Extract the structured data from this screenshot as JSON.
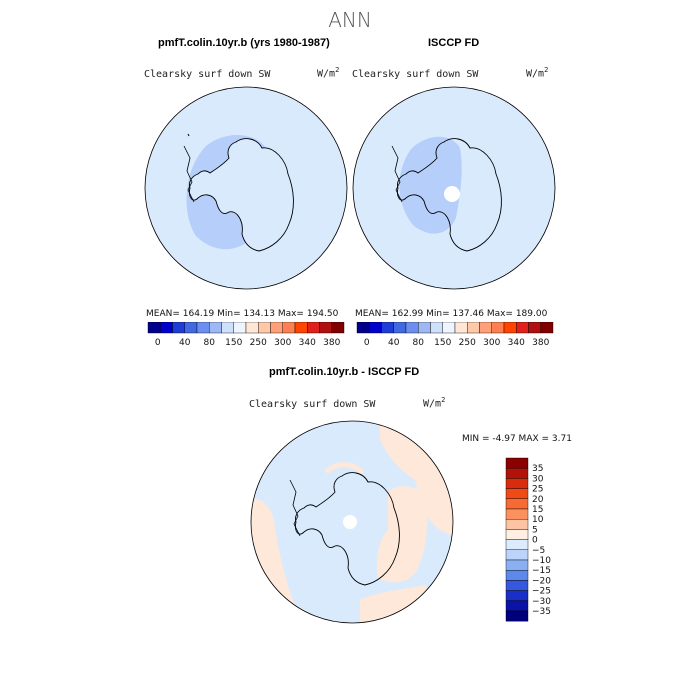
{
  "title": "ANN",
  "panels": {
    "model": {
      "title": "pmfT.colin.10yr.b (yrs 1980-1987)",
      "variable": "Clearsky surf down SW",
      "units_base": "W/m",
      "units_exp": "2",
      "stats": "MEAN= 164.19 Min= 134.13 Max= 194.50"
    },
    "obs": {
      "title": "ISCCP FD",
      "variable": "Clearsky surf down SW",
      "units_base": "W/m",
      "units_exp": "2",
      "stats": "MEAN= 162.99 Min= 137.46 Max= 189.00"
    },
    "diff": {
      "title": "pmfT.colin.10yr.b - ISCCP FD",
      "variable": "Clearsky surf down SW",
      "units_base": "W/m",
      "units_exp": "2",
      "stats": "MIN = -4.97 MAX = 3.71"
    }
  },
  "colorbar_abs": {
    "labels": [
      "0",
      "40",
      "80",
      "150",
      "250",
      "300",
      "340",
      "380"
    ],
    "colors": [
      "#00008b",
      "#0000cd",
      "#1e3cd6",
      "#4169e1",
      "#6b8ef0",
      "#9eb8f5",
      "#cfe0fb",
      "#eef5ff",
      "#ffe6d5",
      "#ffc8a8",
      "#ffa07a",
      "#ff7f50",
      "#ff4500",
      "#e0201a",
      "#b01010",
      "#800000"
    ]
  },
  "colorbar_diff": {
    "labels": [
      "35",
      "30",
      "25",
      "20",
      "15",
      "10",
      "5",
      "0",
      "−5",
      "−10",
      "−15",
      "−20",
      "−25",
      "−30",
      "−35"
    ],
    "colors": [
      "#8b0000",
      "#b3120b",
      "#d92b0e",
      "#f04a16",
      "#f86a33",
      "#fb915f",
      "#fdc4a4",
      "#ffeee2",
      "#ddecfc",
      "#bcd3fa",
      "#8bb0f2",
      "#5e88ea",
      "#3558de",
      "#1a2ec8",
      "#0a13a6",
      "#00007a"
    ]
  },
  "map_colors": {
    "ocean": "#d9eafd",
    "antarctic_band": "#b6cefa",
    "positive_diff": "#fde8da",
    "missing": "#ffffff"
  }
}
